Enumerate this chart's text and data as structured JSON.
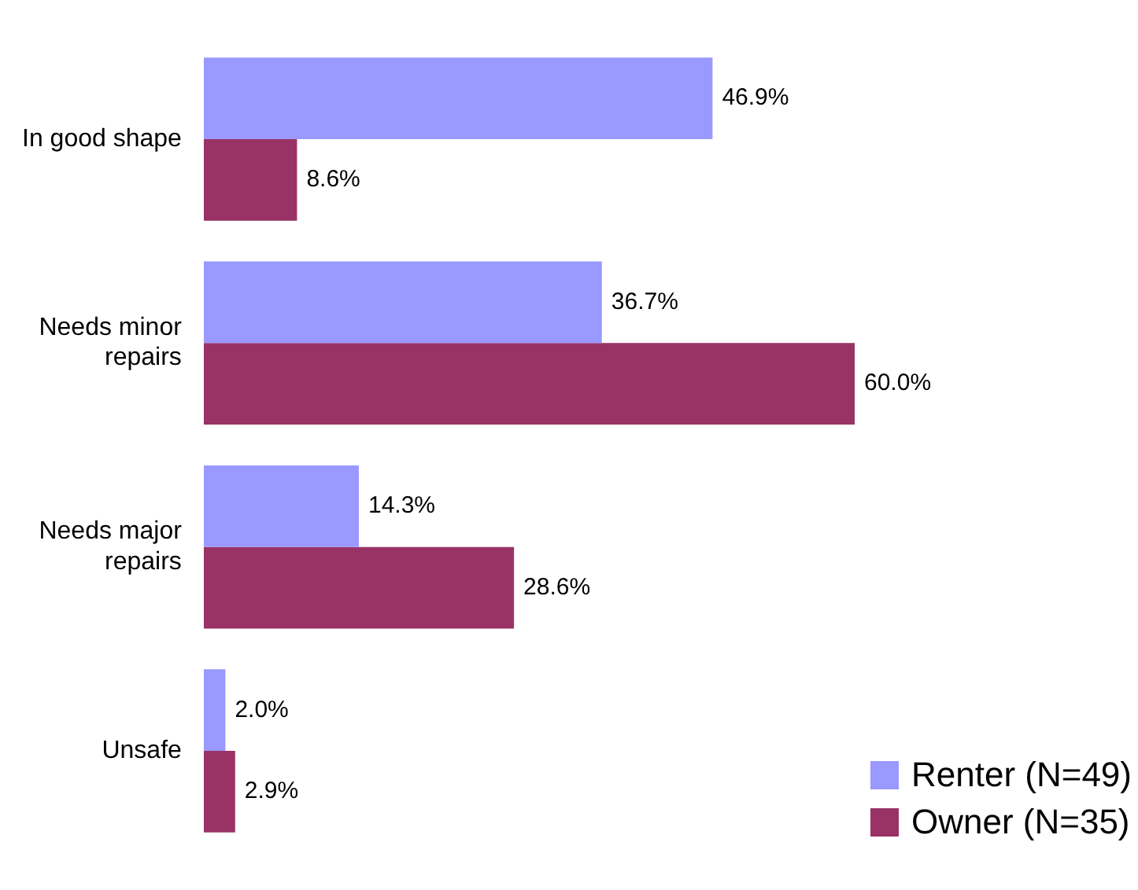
{
  "chart_data": {
    "type": "bar",
    "orientation": "horizontal",
    "categories": [
      "In good shape",
      "Needs minor repairs",
      "Needs major repairs",
      "Unsafe"
    ],
    "series": [
      {
        "name": "Renter (N=49)",
        "color": "#9999ff",
        "values": [
          46.9,
          36.7,
          14.3,
          2.0
        ],
        "value_labels": [
          "46.9%",
          "36.7%",
          "14.3%",
          "2.0%"
        ]
      },
      {
        "name": "Owner (N=35)",
        "color": "#993366",
        "values": [
          8.6,
          60.0,
          28.6,
          2.9
        ],
        "value_labels": [
          "8.6%",
          "60.0%",
          "28.6%",
          "2.9%"
        ]
      }
    ],
    "tick_labels": "y",
    "legend": "bottom right"
  }
}
